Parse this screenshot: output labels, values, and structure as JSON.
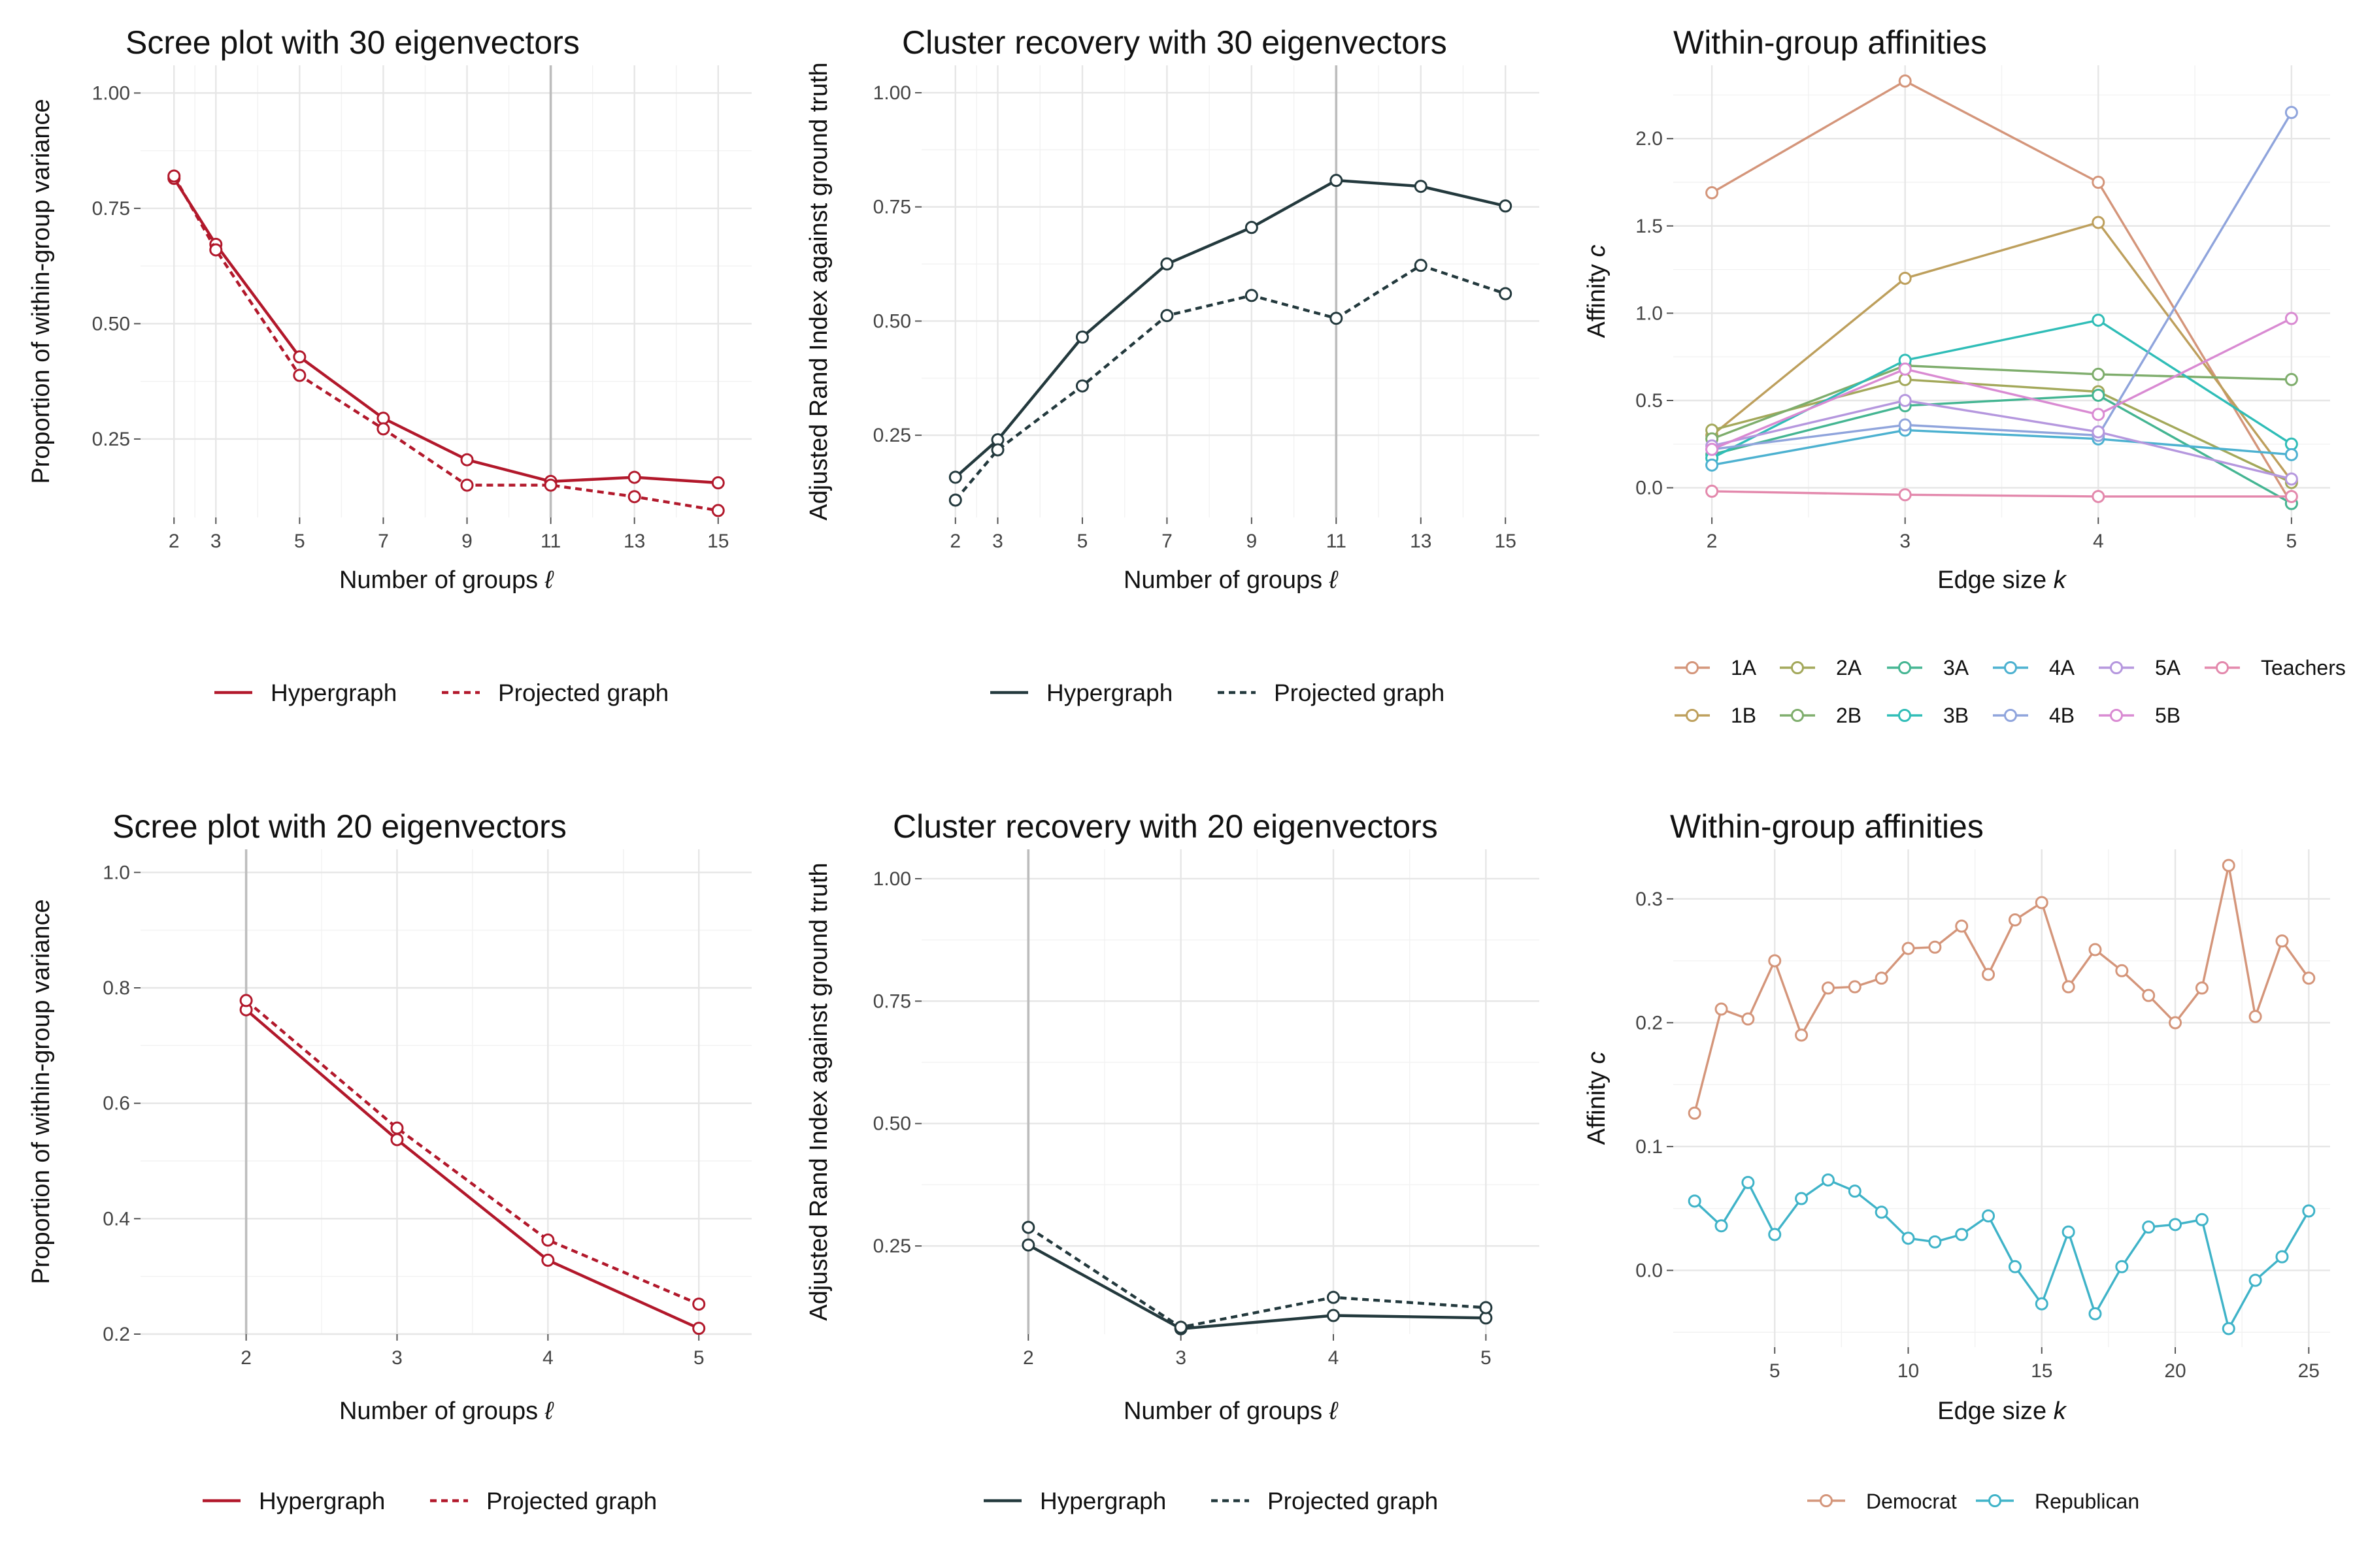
{
  "chart_data": [
    {
      "id": "p1",
      "type": "line",
      "title": "Scree plot with 30 eigenvectors",
      "xlabel": "Number of groups ℓ",
      "ylabel": "Proportion of within-group variance",
      "x": [
        2,
        3,
        5,
        7,
        9,
        11,
        13,
        15
      ],
      "xticks": [
        2,
        3,
        5,
        7,
        9,
        11,
        13,
        15
      ],
      "xlim": [
        1.2,
        15.8
      ],
      "ylim": [
        0.08,
        1.06
      ],
      "yticks": [
        0.25,
        0.5,
        0.75,
        1.0
      ],
      "ytick_labels": [
        "0.25",
        "0.50",
        "0.75",
        "1.00"
      ],
      "ytick_minor": [
        0.375,
        0.625,
        0.875
      ],
      "vline": 11,
      "color": "#b2182b",
      "series": [
        {
          "name": "Hypergraph",
          "dash": false,
          "values": [
            0.815,
            0.672,
            0.428,
            0.295,
            0.205,
            0.158,
            0.167,
            0.155
          ]
        },
        {
          "name": "Projected graph",
          "dash": true,
          "values": [
            0.82,
            0.66,
            0.388,
            0.272,
            0.15,
            0.15,
            0.125,
            0.095
          ]
        }
      ],
      "legend": "bottom"
    },
    {
      "id": "p2",
      "type": "line",
      "title": "Cluster recovery with 30 eigenvectors",
      "xlabel": "Number of groups ℓ",
      "ylabel": "Adjusted Rand Index against ground truth",
      "x": [
        2,
        3,
        5,
        7,
        9,
        11,
        13,
        15
      ],
      "xticks": [
        2,
        3,
        5,
        7,
        9,
        11,
        13,
        15
      ],
      "xlim": [
        1.2,
        15.8
      ],
      "ylim": [
        0.07,
        1.06
      ],
      "yticks": [
        0.25,
        0.5,
        0.75,
        1.0
      ],
      "ytick_labels": [
        "0.25",
        "0.50",
        "0.75",
        "1.00"
      ],
      "ytick_minor": [
        0.375,
        0.625,
        0.875
      ],
      "vline": 11,
      "color": "#23393d",
      "series": [
        {
          "name": "Hypergraph",
          "dash": false,
          "values": [
            0.158,
            0.24,
            0.465,
            0.625,
            0.705,
            0.808,
            0.795,
            0.752
          ]
        },
        {
          "name": "Projected graph",
          "dash": true,
          "values": [
            0.108,
            0.218,
            0.358,
            0.512,
            0.556,
            0.506,
            0.622,
            0.56
          ]
        }
      ],
      "legend": "bottom"
    },
    {
      "id": "p3",
      "type": "line",
      "title": "Within-group affinities",
      "xlabel": "Edge size k",
      "ylabel": "Affinity c",
      "x": [
        2,
        3,
        4,
        5
      ],
      "xticks": [
        2,
        3,
        4,
        5
      ],
      "xlim": [
        1.8,
        5.2
      ],
      "ylim": [
        -0.17,
        2.42
      ],
      "yticks": [
        0.0,
        0.5,
        1.0,
        1.5,
        2.0
      ],
      "ytick_labels": [
        "0.0",
        "0.5",
        "1.0",
        "1.5",
        "2.0"
      ],
      "ytick_minor": [
        0.25,
        0.75,
        1.25,
        1.75,
        2.25
      ],
      "legend": "bottom",
      "series": [
        {
          "name": "1A",
          "color": "#d4957a",
          "values": [
            1.69,
            2.33,
            1.75,
            -0.09
          ]
        },
        {
          "name": "1B",
          "color": "#bd9f5c",
          "values": [
            0.3,
            1.2,
            1.52,
            0.04
          ]
        },
        {
          "name": "2A",
          "color": "#a3a85a",
          "values": [
            0.33,
            0.62,
            0.55,
            0.03
          ]
        },
        {
          "name": "2B",
          "color": "#7ead6c",
          "values": [
            0.28,
            0.7,
            0.65,
            0.62
          ]
        },
        {
          "name": "3A",
          "color": "#44b592",
          "values": [
            0.19,
            0.47,
            0.53,
            -0.09
          ]
        },
        {
          "name": "3B",
          "color": "#2fbdb7",
          "values": [
            0.17,
            0.73,
            0.96,
            0.25
          ]
        },
        {
          "name": "4A",
          "color": "#4cb1d0",
          "values": [
            0.13,
            0.33,
            0.28,
            0.19
          ]
        },
        {
          "name": "4B",
          "color": "#8fa4dc",
          "values": [
            0.22,
            0.36,
            0.3,
            2.15
          ]
        },
        {
          "name": "5A",
          "color": "#b597de",
          "values": [
            0.24,
            0.5,
            0.32,
            0.05
          ]
        },
        {
          "name": "5B",
          "color": "#d98ad2",
          "values": [
            0.22,
            0.68,
            0.42,
            0.97
          ]
        },
        {
          "name": "Teachers",
          "color": "#e388ac",
          "values": [
            -0.02,
            -0.04,
            -0.05,
            -0.05
          ]
        }
      ]
    },
    {
      "id": "p4",
      "type": "line",
      "title": "Scree plot with 20 eigenvectors",
      "xlabel": "Number of groups ℓ",
      "ylabel": "Proportion of within-group variance",
      "x": [
        2,
        3,
        4,
        5
      ],
      "xticks": [
        2,
        3,
        4,
        5
      ],
      "xlim": [
        1.3,
        5.35
      ],
      "ylim": [
        0.2,
        1.04
      ],
      "yticks": [
        0.2,
        0.4,
        0.6,
        0.8,
        1.0
      ],
      "ytick_labels": [
        "0.2",
        "0.4",
        "0.6",
        "0.8",
        "1.0"
      ],
      "ytick_minor": [
        0.3,
        0.5,
        0.7,
        0.9
      ],
      "vline": 2,
      "color": "#b2182b",
      "series": [
        {
          "name": "Hypergraph",
          "dash": false,
          "values": [
            0.762,
            0.537,
            0.328,
            0.21
          ]
        },
        {
          "name": "Projected graph",
          "dash": true,
          "values": [
            0.778,
            0.557,
            0.363,
            0.252
          ]
        }
      ],
      "legend": "bottom"
    },
    {
      "id": "p5",
      "type": "line",
      "title": "Cluster recovery with 20 eigenvectors",
      "xlabel": "Number of groups ℓ",
      "ylabel": "Adjusted Rand Index against ground truth",
      "x": [
        2,
        3,
        4,
        5
      ],
      "xticks": [
        2,
        3,
        4,
        5
      ],
      "xlim": [
        1.3,
        5.35
      ],
      "ylim": [
        0.07,
        1.06
      ],
      "yticks": [
        0.25,
        0.5,
        0.75,
        1.0
      ],
      "ytick_labels": [
        "0.25",
        "0.50",
        "0.75",
        "1.00"
      ],
      "ytick_minor": [
        0.375,
        0.625,
        0.875
      ],
      "vline": 2,
      "color": "#23393d",
      "series": [
        {
          "name": "Hypergraph",
          "dash": false,
          "values": [
            0.252,
            0.081,
            0.108,
            0.103
          ]
        },
        {
          "name": "Projected graph",
          "dash": true,
          "values": [
            0.288,
            0.084,
            0.145,
            0.124
          ]
        }
      ],
      "legend": "bottom"
    },
    {
      "id": "p6",
      "type": "line",
      "title": "Within-group affinities",
      "xlabel": "Edge size k",
      "ylabel": "Affinity c",
      "x": [
        2,
        3,
        4,
        5,
        6,
        7,
        8,
        9,
        10,
        11,
        12,
        13,
        14,
        15,
        16,
        17,
        18,
        19,
        20,
        21,
        22,
        23,
        24,
        25
      ],
      "xticks": [
        5,
        10,
        15,
        20,
        25
      ],
      "xlim": [
        1.2,
        25.8
      ],
      "ylim": [
        -0.062,
        0.34
      ],
      "yticks": [
        0.0,
        0.1,
        0.2,
        0.3
      ],
      "ytick_labels": [
        "0.0",
        "0.1",
        "0.2",
        "0.3"
      ],
      "ytick_minor": [
        -0.05,
        0.05,
        0.15,
        0.25
      ],
      "legend": "bottom",
      "series": [
        {
          "name": "Democrat",
          "color": "#d4957a",
          "values": [
            0.127,
            0.211,
            0.203,
            0.25,
            0.19,
            0.228,
            0.229,
            0.236,
            0.26,
            0.261,
            0.278,
            0.239,
            0.283,
            0.297,
            0.229,
            0.259,
            0.242,
            0.222,
            0.2,
            0.228,
            0.327,
            0.205,
            0.266,
            0.236
          ]
        },
        {
          "name": "Republican",
          "color": "#3fb3c8",
          "values": [
            0.056,
            0.036,
            0.071,
            0.029,
            0.058,
            0.073,
            0.064,
            0.047,
            0.026,
            0.023,
            0.029,
            0.044,
            0.003,
            -0.027,
            0.031,
            -0.035,
            0.003,
            0.035,
            0.037,
            0.041,
            -0.047,
            -0.008,
            0.011,
            0.048
          ]
        }
      ]
    }
  ]
}
